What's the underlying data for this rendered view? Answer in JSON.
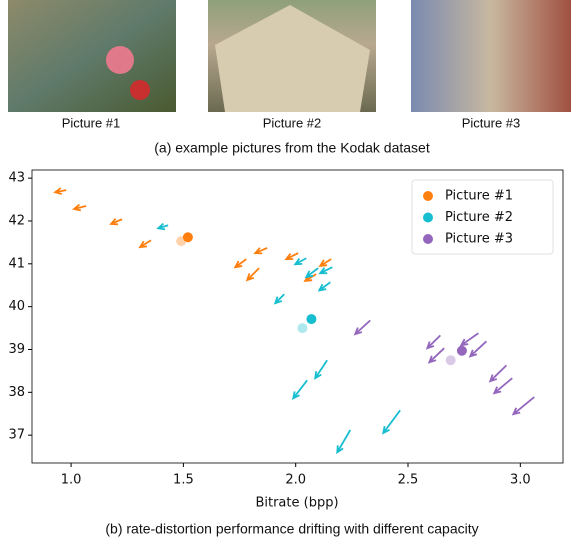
{
  "pictures": {
    "labels": [
      "Picture #1",
      "Picture #2",
      "Picture #3"
    ]
  },
  "caption_a": "(a) example pictures from the Kodak dataset",
  "caption_b": "(b) rate-distortion performance drifting with different capacity",
  "chart_data": {
    "type": "scatter",
    "xlabel": "Bitrate (bpp)",
    "xlim": [
      0.826,
      3.19
    ],
    "ylim": [
      36.35,
      43.19
    ],
    "xticks": [
      {
        "value": 1,
        "label": "1.0"
      },
      {
        "value": 1.5,
        "label": "1.5"
      },
      {
        "value": 2,
        "label": "2.0"
      },
      {
        "value": 2.5,
        "label": "2.5"
      },
      {
        "value": 3,
        "label": "3.0"
      }
    ],
    "yticks": [
      37,
      38,
      39,
      40,
      41,
      42,
      43
    ],
    "legend": "upper right",
    "series": [
      {
        "name": "Picture #1",
        "color": "#ff7f0e",
        "x": [
          1.52
        ],
        "values": [
          41.62
        ],
        "faded_x": [
          1.49
        ],
        "faded_values": [
          41.53
        ],
        "arrows": [
          [
            0.978,
            42.72,
            0.929,
            42.67
          ],
          [
            1.067,
            42.35,
            1.013,
            42.28
          ],
          [
            1.227,
            42.04,
            1.178,
            41.93
          ],
          [
            1.356,
            41.55,
            1.307,
            41.39
          ],
          [
            1.78,
            41.11,
            1.731,
            40.92
          ],
          [
            1.837,
            40.9,
            1.784,
            40.62
          ],
          [
            1.873,
            41.37,
            1.82,
            41.25
          ],
          [
            2.011,
            41.25,
            1.958,
            41.11
          ],
          [
            2.091,
            40.76,
            2.042,
            40.6
          ],
          [
            2.158,
            41.11,
            2.109,
            40.95
          ]
        ]
      },
      {
        "name": "Picture #2",
        "color": "#17becf",
        "x": [
          2.07
        ],
        "values": [
          39.71
        ],
        "faded_x": [
          2.03
        ],
        "faded_values": [
          39.5
        ],
        "arrows": [
          [
            1.432,
            41.9,
            1.388,
            41.83
          ],
          [
            1.949,
            40.29,
            1.909,
            40.08
          ],
          [
            2.047,
            41.13,
            1.998,
            40.99
          ],
          [
            2.1,
            40.9,
            2.047,
            40.69
          ],
          [
            2.163,
            40.92,
            2.109,
            40.78
          ],
          [
            2.154,
            40.57,
            2.105,
            40.38
          ],
          [
            2.051,
            38.28,
            1.989,
            37.86
          ],
          [
            2.14,
            38.75,
            2.087,
            38.33
          ],
          [
            2.243,
            37.12,
            2.185,
            36.6
          ],
          [
            2.465,
            37.58,
            2.39,
            37.05
          ]
        ]
      },
      {
        "name": "Picture #3",
        "color": "#9467bd",
        "x": [
          2.74
        ],
        "values": [
          38.97
        ],
        "faded_x": [
          2.69
        ],
        "faded_values": [
          38.75
        ],
        "arrows": [
          [
            2.332,
            39.68,
            2.265,
            39.36
          ],
          [
            2.644,
            39.33,
            2.586,
            39.03
          ],
          [
            2.661,
            39.03,
            2.595,
            38.7
          ],
          [
            2.813,
            39.38,
            2.737,
            39.1
          ],
          [
            2.849,
            39.19,
            2.777,
            38.84
          ],
          [
            2.938,
            38.63,
            2.866,
            38.26
          ],
          [
            2.964,
            38.33,
            2.884,
            37.98
          ],
          [
            3.062,
            37.89,
            2.969,
            37.49
          ]
        ]
      }
    ]
  }
}
